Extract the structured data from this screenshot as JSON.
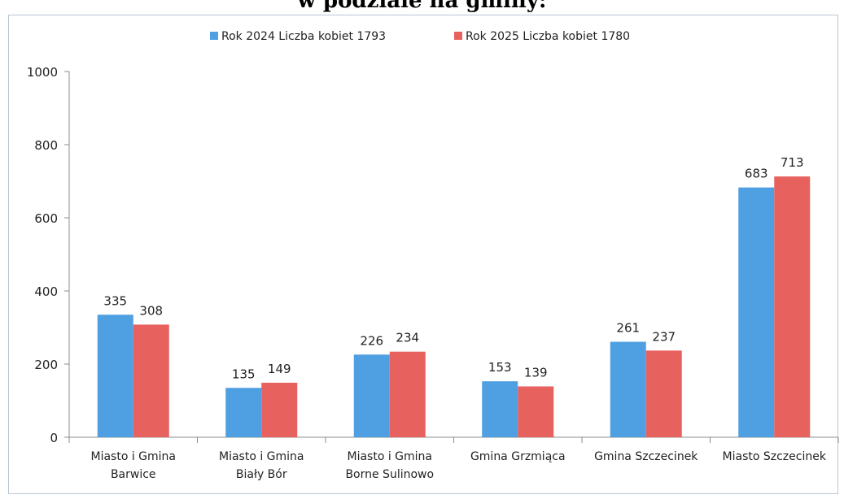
{
  "title_fragment": "w podziale na gminy:",
  "chart_data": {
    "type": "bar",
    "categories": [
      [
        "Miasto i Gmina",
        "Barwice"
      ],
      [
        "Miasto i Gmina",
        "Biały Bór"
      ],
      [
        "Miasto i Gmina",
        "Borne Sulinowo"
      ],
      [
        "Gmina Grzmiąca"
      ],
      [
        "Gmina Szczecinek"
      ],
      [
        "Miasto Szczecinek"
      ]
    ],
    "series": [
      {
        "name": "Rok 2024 Liczba kobiet 1793",
        "color": "#4f9fe3",
        "values": [
          335,
          135,
          226,
          153,
          261,
          683
        ]
      },
      {
        "name": "Rok 2025 Liczba kobiet 1780",
        "color": "#e7615f",
        "values": [
          308,
          149,
          234,
          139,
          237,
          713
        ]
      }
    ],
    "ylim": [
      0,
      1000
    ],
    "yticks": [
      0,
      200,
      400,
      600,
      800,
      1000
    ],
    "grid": false,
    "legend": "top-center"
  }
}
